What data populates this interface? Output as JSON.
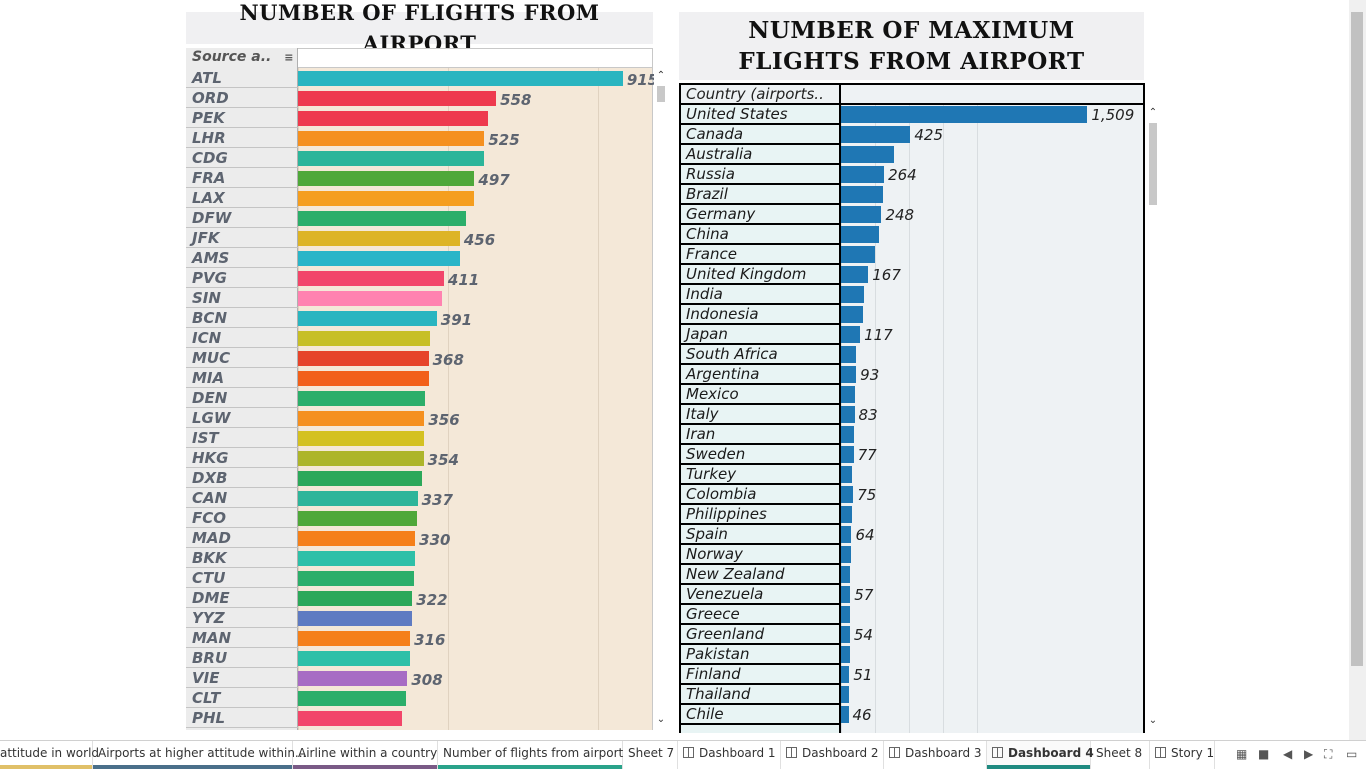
{
  "left_chart_title": "NUMBER OF FLIGHTS FROM AIRPORT",
  "right_chart_title": "NUMBER OF MAXIMUM FLIGHTS FROM AIRPORT",
  "chart_data": [
    {
      "type": "bar",
      "orientation": "horizontal",
      "title": "NUMBER OF FLIGHTS FROM AIRPORT",
      "row_header": "Source a..",
      "categories": [
        "ATL",
        "ORD",
        "PEK",
        "LHR",
        "CDG",
        "FRA",
        "LAX",
        "DFW",
        "JFK",
        "AMS",
        "PVG",
        "SIN",
        "BCN",
        "ICN",
        "MUC",
        "MIA",
        "DEN",
        "LGW",
        "IST",
        "HKG",
        "DXB",
        "CAN",
        "FCO",
        "MAD",
        "BKK",
        "CTU",
        "DME",
        "YYZ",
        "MAN",
        "BRU",
        "VIE",
        "CLT",
        "PHL"
      ],
      "values": [
        915,
        558,
        535,
        525,
        525,
        497,
        495,
        473,
        456,
        455,
        411,
        407,
        391,
        373,
        368,
        368,
        358,
        356,
        356,
        354,
        350,
        337,
        334,
        330,
        329,
        327,
        322,
        320,
        316,
        316,
        308,
        303,
        293
      ],
      "data_labels": [
        "915",
        "558",
        "",
        "525",
        "",
        "497",
        "",
        "",
        "456",
        "",
        "411",
        "",
        "391",
        "",
        "368",
        "",
        "",
        "356",
        "",
        "354",
        "",
        "337",
        "",
        "330",
        "",
        "",
        "322",
        "",
        "316",
        "",
        "308",
        "",
        ""
      ],
      "colors": [
        "#2ab5c0",
        "#ee3a4e",
        "#ee3a4e",
        "#f5901f",
        "#2cb59a",
        "#4fa83a",
        "#f59e1f",
        "#2cae6a",
        "#ddb426",
        "#2ab5c8",
        "#f2466a",
        "#ff82b0",
        "#2ab5c0",
        "#c7bf26",
        "#e6442a",
        "#f2601a",
        "#2cae6a",
        "#f5901f",
        "#d4c121",
        "#adb52a",
        "#2ca85a",
        "#2eb59a",
        "#4fa83a",
        "#f5801a",
        "#2ec0a8",
        "#2cae6a",
        "#2ca85a",
        "#5f7bc2",
        "#f5801a",
        "#2ec0a8",
        "#a76cc4",
        "#2cae6a",
        "#f2466a"
      ],
      "xlim": [
        0,
        1000
      ],
      "grid": true
    },
    {
      "type": "bar",
      "orientation": "horizontal",
      "title": "NUMBER OF MAXIMUM FLIGHTS FROM AIRPORT",
      "row_header": "Country (airports..",
      "categories": [
        "United States",
        "Canada",
        "Australia",
        "Russia",
        "Brazil",
        "Germany",
        "China",
        "France",
        "United Kingdom",
        "India",
        "Indonesia",
        "Japan",
        "South Africa",
        "Argentina",
        "Mexico",
        "Italy",
        "Iran",
        "Sweden",
        "Turkey",
        "Colombia",
        "Philippines",
        "Spain",
        "Norway",
        "New Zealand",
        "Venezuela",
        "Greece",
        "Greenland",
        "Pakistan",
        "Finland",
        "Thailand",
        "Chile"
      ],
      "values": [
        1509,
        425,
        325,
        264,
        255,
        248,
        233,
        207,
        167,
        138,
        135,
        117,
        89,
        93,
        88,
        83,
        79,
        77,
        68,
        75,
        65,
        64,
        59,
        58,
        57,
        56,
        54,
        53,
        51,
        48,
        46
      ],
      "data_labels": [
        "1,509",
        "425",
        "",
        "264",
        "",
        "248",
        "",
        "",
        "167",
        "",
        "",
        "117",
        "",
        "93",
        "",
        "83",
        "",
        "77",
        "",
        "75",
        "",
        "64",
        "",
        "",
        "57",
        "",
        "54",
        "",
        "51",
        "",
        "46"
      ],
      "color": "#1f77b4",
      "xlim": [
        0,
        1850
      ],
      "grid": true
    }
  ],
  "tabs": [
    {
      "label": "attitude in world",
      "active": false,
      "icon": "",
      "underline": "#e0c068"
    },
    {
      "label": "Airports at higher attitude within...",
      "active": false,
      "icon": "",
      "underline": "#4a6f8a"
    },
    {
      "label": "Airline within a country",
      "active": false,
      "icon": "",
      "underline": "#7a5a86"
    },
    {
      "label": "Number of flights from airport",
      "active": false,
      "icon": "",
      "underline": "#2aa38a"
    },
    {
      "label": "Sheet 7",
      "active": false,
      "icon": "",
      "underline": ""
    },
    {
      "label": "Dashboard 1",
      "active": false,
      "icon": "dashboard-icon",
      "underline": ""
    },
    {
      "label": "Dashboard 2",
      "active": false,
      "icon": "dashboard-icon",
      "underline": ""
    },
    {
      "label": "Dashboard 3",
      "active": false,
      "icon": "dashboard-icon",
      "underline": ""
    },
    {
      "label": "Dashboard 4",
      "active": true,
      "icon": "dashboard-icon",
      "underline": "#1f8a80"
    },
    {
      "label": "Sheet 8",
      "active": false,
      "icon": "",
      "underline": ""
    },
    {
      "label": "Story 1",
      "active": false,
      "icon": "story-icon",
      "underline": ""
    }
  ]
}
